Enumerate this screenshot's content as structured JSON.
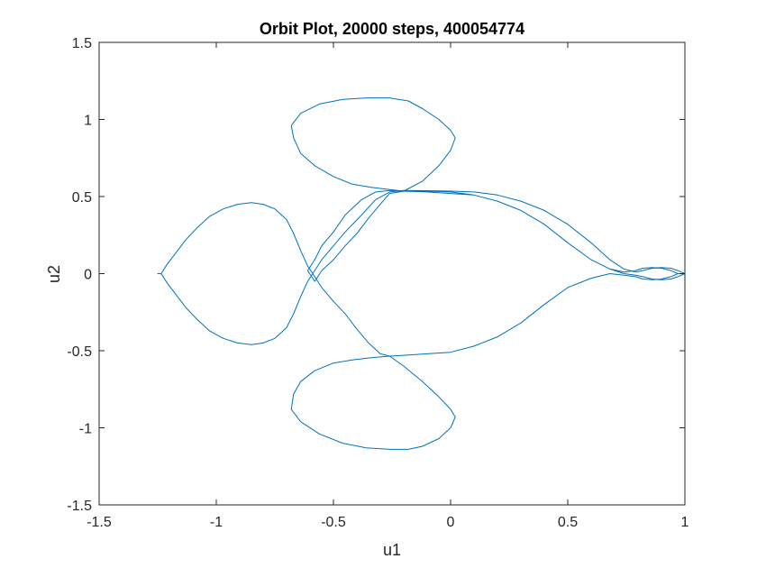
{
  "chart_data": {
    "type": "line",
    "title": "Orbit Plot, 20000 steps, 400054774",
    "xlabel": "u1",
    "ylabel": "u2",
    "xlim": [
      -1.5,
      1
    ],
    "ylim": [
      -1.5,
      1.5
    ],
    "xticks": [
      -1.5,
      -1,
      -0.5,
      0,
      0.5,
      1
    ],
    "xtick_labels": [
      "-1.5",
      "-1",
      "-0.5",
      "0",
      "0.5",
      "1"
    ],
    "yticks": [
      -1.5,
      -1,
      -0.5,
      0,
      0.5,
      1,
      1.5
    ],
    "ytick_labels": [
      "-1.5",
      "-1",
      "-0.5",
      "0",
      "0.5",
      "1",
      "1.5"
    ],
    "grid": false,
    "legend": "none",
    "series": [
      {
        "color": "#0072BD",
        "x": [
          1.0,
          0.97,
          0.94,
          0.9,
          0.86,
          0.82,
          0.79,
          0.74,
          0.68,
          0.6,
          0.5,
          0.4,
          0.3,
          0.2,
          0.1,
          0.0,
          -0.1,
          -0.2,
          -0.26,
          -0.32,
          -0.38,
          -0.45,
          -0.5,
          -0.55,
          -0.58,
          -0.61,
          -0.64,
          -0.67,
          -0.7,
          -0.75,
          -0.8,
          -0.85,
          -0.91,
          -0.97,
          -1.03,
          -1.08,
          -1.13,
          -1.17,
          -1.21,
          -1.235,
          -1.25,
          -1.235,
          -1.21,
          -1.17,
          -1.13,
          -1.08,
          -1.03,
          -0.97,
          -0.91,
          -0.85,
          -0.8,
          -0.75,
          -0.7,
          -0.67,
          -0.64,
          -0.61,
          -0.58,
          -0.55,
          -0.5,
          -0.45,
          -0.4,
          -0.35,
          -0.3,
          -0.26,
          -0.2,
          -0.12,
          -0.05,
          0.0,
          0.02,
          0.0,
          -0.05,
          -0.12,
          -0.18,
          -0.26,
          -0.36,
          -0.46,
          -0.56,
          -0.64,
          -0.68,
          -0.67,
          -0.64,
          -0.58,
          -0.5,
          -0.42,
          -0.34,
          -0.26,
          -0.2,
          -0.1,
          0.0,
          0.1,
          0.2,
          0.3,
          0.4,
          0.5,
          0.6,
          0.68,
          0.74,
          0.79,
          0.82,
          0.86,
          0.9,
          0.94,
          0.97,
          1.0,
          0.97,
          0.94,
          0.9,
          0.86,
          0.82,
          0.79,
          0.74,
          0.68,
          0.6,
          0.5,
          0.4,
          0.3,
          0.2,
          0.1,
          0.0,
          -0.1,
          -0.2,
          -0.26,
          -0.32,
          -0.38,
          -0.45,
          -0.5,
          -0.55,
          -0.58,
          -0.61,
          -0.58,
          -0.55,
          -0.5,
          -0.45,
          -0.4,
          -0.35,
          -0.3,
          -0.26,
          -0.2,
          -0.12,
          -0.05,
          0.0,
          0.02,
          0.0,
          -0.05,
          -0.12,
          -0.18,
          -0.26,
          -0.36,
          -0.46,
          -0.56,
          -0.64,
          -0.68,
          -0.67,
          -0.64,
          -0.58,
          -0.5,
          -0.42,
          -0.34,
          -0.26,
          -0.2,
          -0.1,
          0.0,
          0.1,
          0.2,
          0.3,
          0.4,
          0.5,
          0.6,
          0.68,
          0.74,
          0.79,
          0.82,
          0.86,
          0.9,
          0.94,
          0.97,
          1.0
        ],
        "y": [
          0.0,
          0.02,
          0.035,
          0.04,
          0.035,
          0.02,
          0.01,
          0.03,
          0.09,
          0.2,
          0.32,
          0.41,
          0.47,
          0.51,
          0.53,
          0.535,
          0.538,
          0.54,
          0.53,
          0.48,
          0.38,
          0.27,
          0.18,
          0.09,
          0.02,
          -0.05,
          -0.15,
          -0.26,
          -0.35,
          -0.42,
          -0.45,
          -0.46,
          -0.45,
          -0.42,
          -0.37,
          -0.3,
          -0.22,
          -0.14,
          -0.06,
          0.0,
          0.0,
          0.0,
          0.06,
          0.14,
          0.22,
          0.3,
          0.37,
          0.42,
          0.45,
          0.46,
          0.45,
          0.42,
          0.35,
          0.26,
          0.15,
          0.05,
          -0.02,
          -0.09,
          -0.18,
          -0.26,
          -0.36,
          -0.45,
          -0.52,
          -0.535,
          -0.6,
          -0.7,
          -0.8,
          -0.88,
          -0.93,
          -1.0,
          -1.07,
          -1.12,
          -1.14,
          -1.14,
          -1.13,
          -1.1,
          -1.04,
          -0.96,
          -0.88,
          -0.78,
          -0.7,
          -0.63,
          -0.58,
          -0.56,
          -0.545,
          -0.535,
          -0.53,
          -0.52,
          -0.51,
          -0.47,
          -0.41,
          -0.32,
          -0.2,
          -0.09,
          -0.03,
          0.0,
          -0.01,
          -0.02,
          -0.035,
          -0.04,
          -0.035,
          -0.02,
          0.0,
          0.0,
          0.0,
          0.02,
          0.035,
          0.04,
          0.035,
          0.02,
          0.01,
          0.03,
          0.09,
          0.2,
          0.32,
          0.41,
          0.47,
          0.51,
          0.53,
          0.535,
          0.538,
          0.54,
          0.53,
          0.48,
          0.38,
          0.27,
          0.18,
          0.09,
          0.02,
          -0.05,
          0.02,
          0.09,
          0.18,
          0.26,
          0.36,
          0.45,
          0.52,
          0.535,
          0.6,
          0.7,
          0.8,
          0.88,
          0.93,
          1.0,
          1.07,
          1.12,
          1.14,
          1.14,
          1.13,
          1.1,
          1.04,
          0.96,
          0.88,
          0.78,
          0.7,
          0.63,
          0.58,
          0.56,
          0.545,
          0.535,
          0.53,
          0.52,
          0.51,
          0.47,
          0.41,
          0.32,
          0.2,
          0.09,
          0.03,
          0.0,
          -0.01,
          -0.02,
          -0.035,
          -0.04,
          -0.035,
          -0.02,
          0.0
        ]
      }
    ]
  }
}
